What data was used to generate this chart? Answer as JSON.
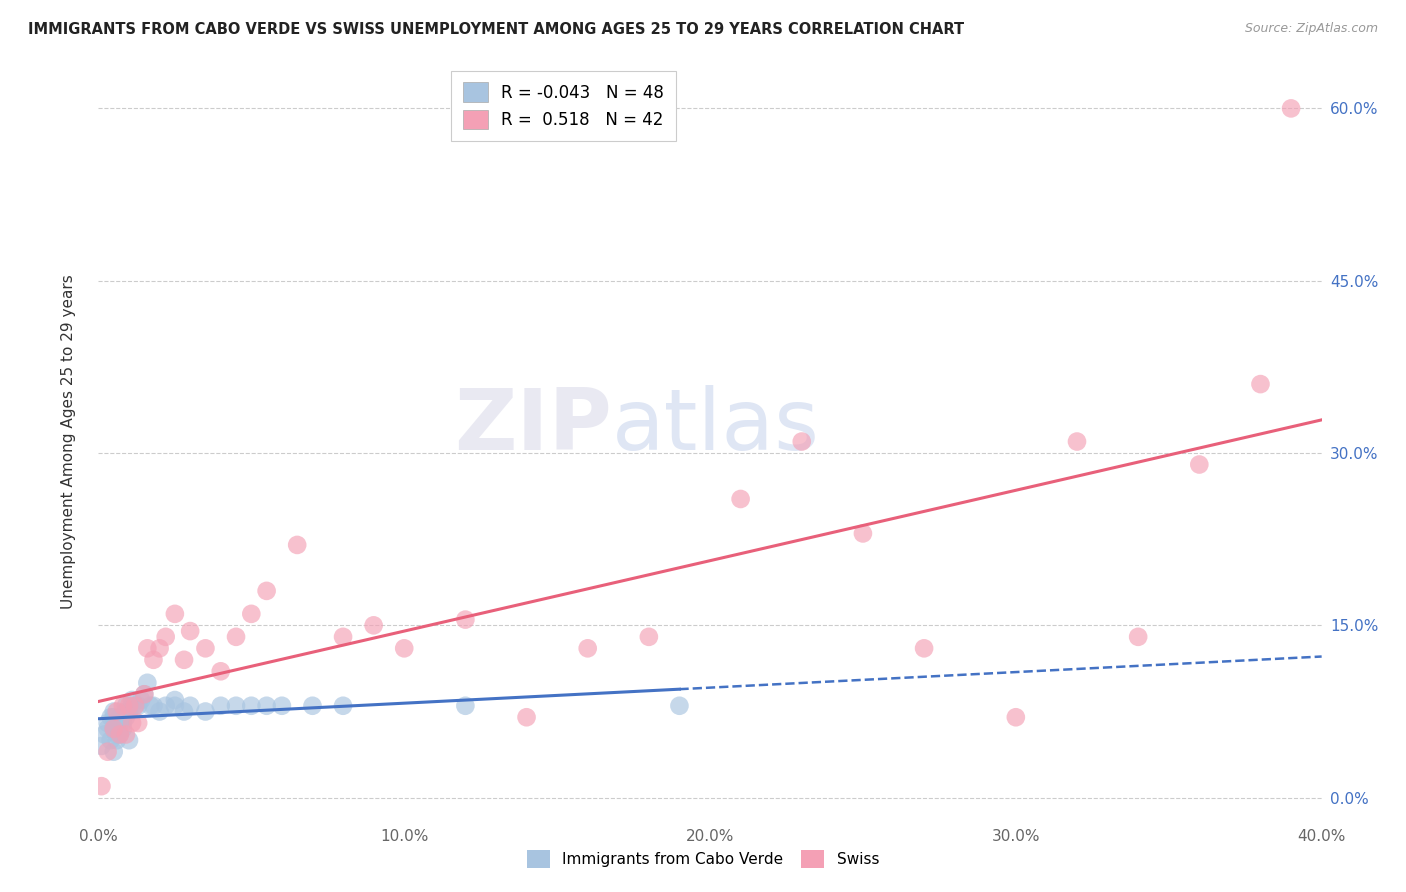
{
  "title": "IMMIGRANTS FROM CABO VERDE VS SWISS UNEMPLOYMENT AMONG AGES 25 TO 29 YEARS CORRELATION CHART",
  "source": "Source: ZipAtlas.com",
  "ylabel": "Unemployment Among Ages 25 to 29 years",
  "xlim": [
    0.0,
    0.4
  ],
  "ylim": [
    -0.02,
    0.64
  ],
  "blue_R": -0.043,
  "blue_N": 48,
  "pink_R": 0.518,
  "pink_N": 42,
  "blue_color": "#a8c4e0",
  "pink_color": "#f4a0b5",
  "blue_line_color": "#4472c4",
  "pink_line_color": "#e8607a",
  "watermark_zip": "ZIP",
  "watermark_atlas": "atlas",
  "blue_points_x": [
    0.001,
    0.002,
    0.003,
    0.003,
    0.004,
    0.004,
    0.005,
    0.005,
    0.005,
    0.005,
    0.006,
    0.006,
    0.006,
    0.007,
    0.007,
    0.007,
    0.008,
    0.008,
    0.009,
    0.009,
    0.009,
    0.01,
    0.01,
    0.011,
    0.011,
    0.012,
    0.013,
    0.014,
    0.015,
    0.016,
    0.017,
    0.018,
    0.02,
    0.022,
    0.025,
    0.025,
    0.028,
    0.03,
    0.035,
    0.04,
    0.045,
    0.05,
    0.055,
    0.06,
    0.07,
    0.08,
    0.12,
    0.19
  ],
  "blue_points_y": [
    0.045,
    0.055,
    0.06,
    0.065,
    0.05,
    0.07,
    0.04,
    0.06,
    0.07,
    0.075,
    0.05,
    0.055,
    0.065,
    0.055,
    0.065,
    0.07,
    0.06,
    0.065,
    0.07,
    0.075,
    0.08,
    0.05,
    0.075,
    0.08,
    0.085,
    0.08,
    0.08,
    0.085,
    0.09,
    0.1,
    0.08,
    0.08,
    0.075,
    0.08,
    0.08,
    0.085,
    0.075,
    0.08,
    0.075,
    0.08,
    0.08,
    0.08,
    0.08,
    0.08,
    0.08,
    0.08,
    0.08,
    0.08
  ],
  "pink_points_x": [
    0.001,
    0.003,
    0.005,
    0.006,
    0.007,
    0.008,
    0.009,
    0.01,
    0.011,
    0.012,
    0.013,
    0.015,
    0.016,
    0.018,
    0.02,
    0.022,
    0.025,
    0.028,
    0.03,
    0.035,
    0.04,
    0.045,
    0.05,
    0.055,
    0.065,
    0.08,
    0.09,
    0.1,
    0.12,
    0.14,
    0.16,
    0.18,
    0.21,
    0.23,
    0.25,
    0.27,
    0.3,
    0.32,
    0.34,
    0.36,
    0.38,
    0.39
  ],
  "pink_points_y": [
    0.01,
    0.04,
    0.06,
    0.075,
    0.055,
    0.08,
    0.055,
    0.08,
    0.065,
    0.08,
    0.065,
    0.09,
    0.13,
    0.12,
    0.13,
    0.14,
    0.16,
    0.12,
    0.145,
    0.13,
    0.11,
    0.14,
    0.16,
    0.18,
    0.22,
    0.14,
    0.15,
    0.13,
    0.155,
    0.07,
    0.13,
    0.14,
    0.26,
    0.31,
    0.23,
    0.13,
    0.07,
    0.31,
    0.14,
    0.29,
    0.36,
    0.6
  ]
}
